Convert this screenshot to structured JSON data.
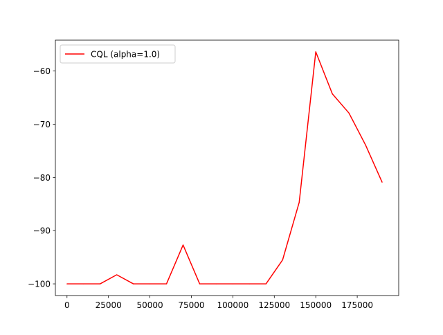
{
  "chart_data": {
    "type": "line",
    "title": "",
    "xlabel": "",
    "ylabel": "",
    "xlim": [
      -7000,
      200000
    ],
    "ylim": [
      -102.2,
      -54.2
    ],
    "xticks": [
      0,
      25000,
      50000,
      75000,
      100000,
      125000,
      150000,
      175000
    ],
    "yticks": [
      -100,
      -90,
      -80,
      -70,
      -60
    ],
    "grid": false,
    "legend_position": "upper-left",
    "series": [
      {
        "name": "CQL (alpha=1.0)",
        "color": "#ff0000",
        "x": [
          0,
          10000,
          20000,
          30000,
          40000,
          50000,
          60000,
          70000,
          80000,
          90000,
          100000,
          110000,
          120000,
          130000,
          140000,
          150000,
          160000,
          170000,
          180000,
          190000
        ],
        "y": [
          -100,
          -100,
          -100,
          -98.3,
          -100,
          -100,
          -100,
          -92.7,
          -100,
          -100,
          -100,
          -100,
          -100,
          -95.5,
          -84.7,
          -56.4,
          -64.3,
          -67.9,
          -73.9,
          -80.9
        ]
      }
    ]
  }
}
